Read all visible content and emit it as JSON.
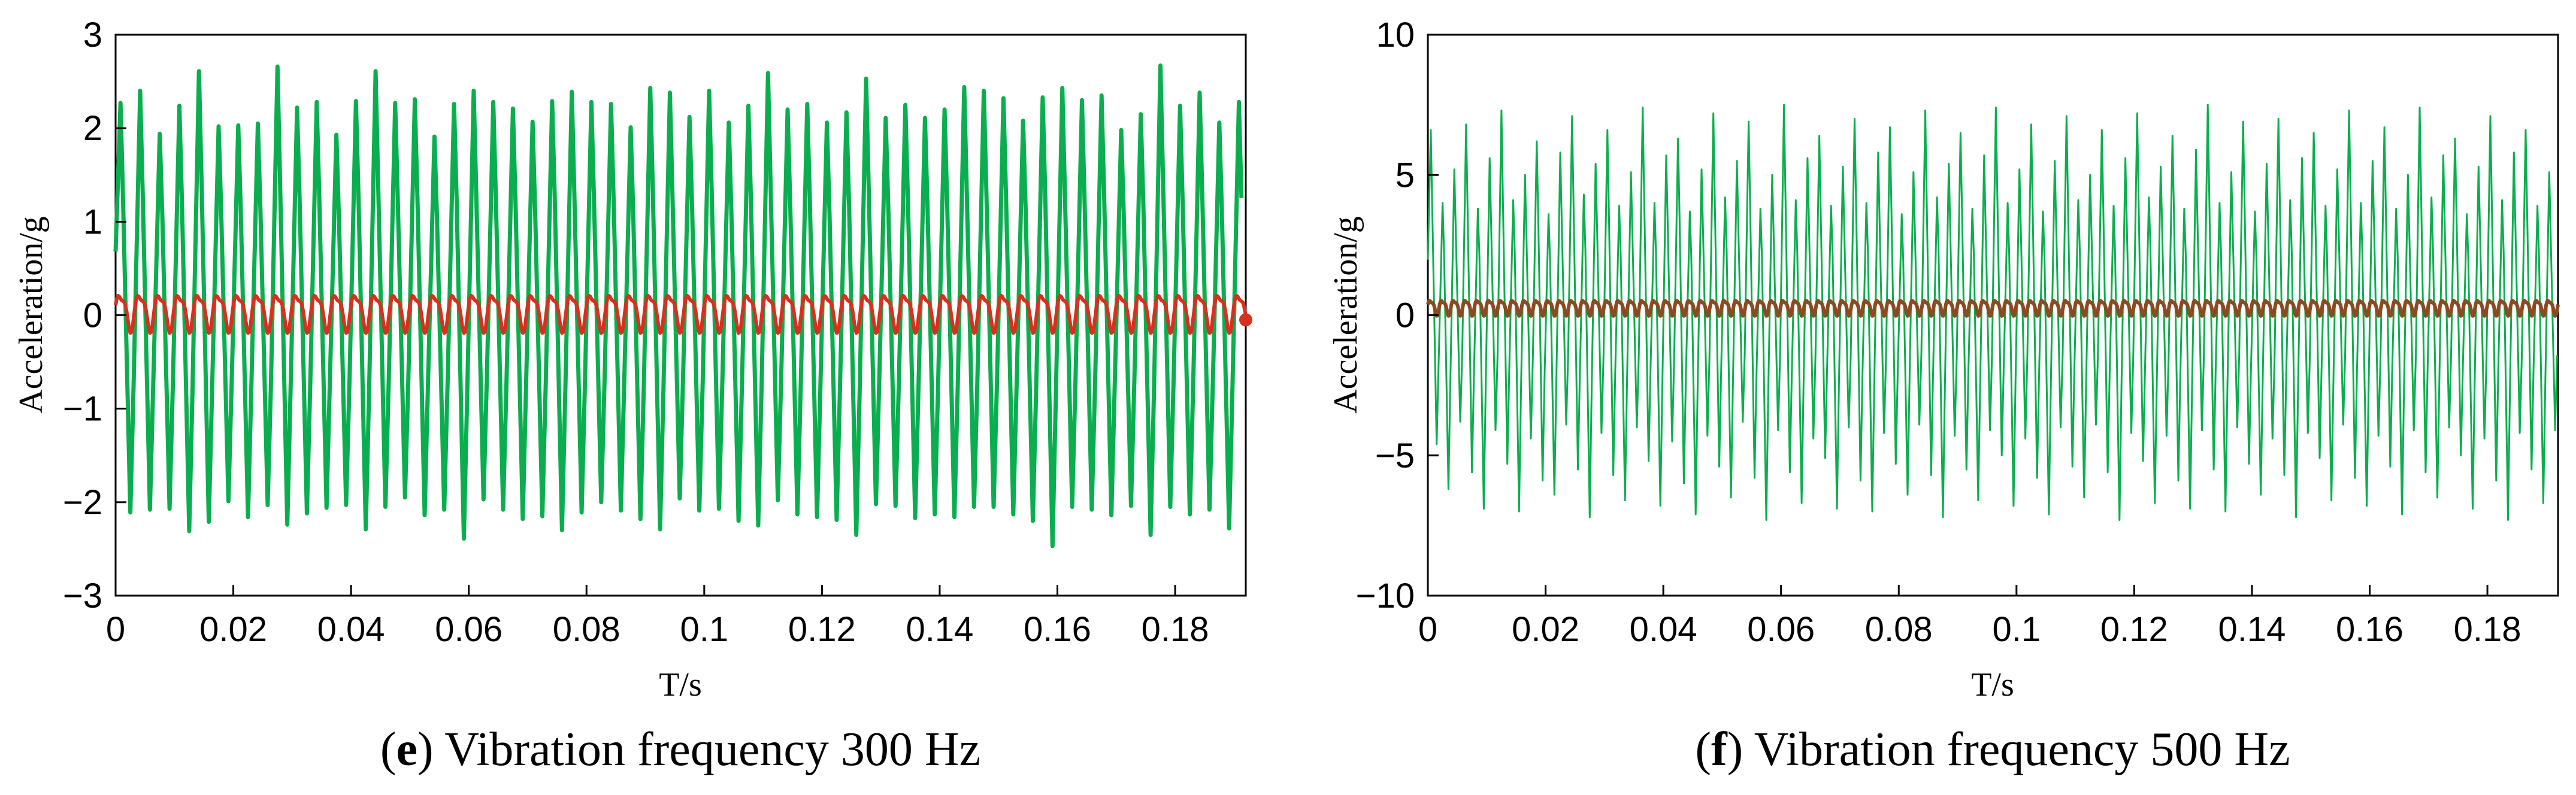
{
  "chart_data": [
    {
      "type": "line",
      "panel_letter": "e",
      "caption_text": " Vibration frequency 300 Hz",
      "xlabel": "T/s",
      "ylabel": "Acceleration/g",
      "xlim": [
        0,
        0.192
      ],
      "ylim": [
        -3,
        3
      ],
      "xticks": [
        0,
        0.02,
        0.04,
        0.06,
        0.08,
        0.1,
        0.12,
        0.14,
        0.16,
        0.18
      ],
      "xtick_labels": [
        "0",
        "0.02",
        "0.04",
        "0.06",
        "0.08",
        "0.1",
        "0.12",
        "0.14",
        "0.16",
        "0.18"
      ],
      "yticks": [
        -3,
        -2,
        -1,
        0,
        1,
        2,
        3
      ],
      "ytick_labels": [
        "−3",
        "−2",
        "−1",
        "0",
        "1",
        "2",
        "3"
      ],
      "grid": false,
      "series": [
        {
          "name": "green",
          "color": "#0aae4f",
          "cycles_per_second": 300,
          "peak_values": [
            2.27,
            2.4,
            1.94,
            2.24,
            2.61,
            2.02,
            2.03,
            2.05,
            2.66,
            2.22,
            2.28,
            1.93,
            2.29,
            2.61,
            2.27,
            2.31,
            1.91,
            2.26,
            2.4,
            2.28,
            2.21,
            2.07,
            2.29,
            2.39,
            2.28,
            2.26,
            2.01,
            2.43,
            2.38,
            2.12,
            2.4,
            2.06,
            2.24,
            2.59,
            2.2,
            2.26,
            2.06,
            2.17,
            2.53,
            2.11,
            2.25,
            2.11,
            2.2,
            2.44,
            2.4,
            2.32,
            2.08,
            2.33,
            2.43,
            2.3,
            2.35,
            1.98,
            2.15,
            2.67,
            2.24,
            2.38,
            2.06,
            2.28
          ],
          "trough_values": [
            -2.11,
            -2.08,
            -2.07,
            -2.31,
            -2.21,
            -1.99,
            -2.16,
            -2.03,
            -2.24,
            -2.12,
            -2.06,
            -2.03,
            -2.29,
            -2.05,
            -1.95,
            -2.14,
            -2.08,
            -2.39,
            -1.97,
            -2.08,
            -2.18,
            -2.15,
            -2.3,
            -2.11,
            -2.0,
            -2.09,
            -2.18,
            -2.29,
            -1.96,
            -2.09,
            -2.07,
            -2.2,
            -2.25,
            -1.98,
            -2.13,
            -2.16,
            -2.19,
            -2.35,
            -2.02,
            -2.04,
            -2.17,
            -2.13,
            -2.16,
            -2.05,
            -2.05,
            -2.13,
            -2.2,
            -2.47,
            -2.05,
            -2.08,
            -2.14,
            -2.04,
            -2.35,
            -2.05,
            -2.13,
            -2.08,
            -2.28,
            -2.38
          ]
        },
        {
          "name": "red",
          "color": "#d6301f",
          "cycles_per_second": 300,
          "amplitude": 0.22,
          "offset": 0.05
        }
      ]
    },
    {
      "type": "line",
      "panel_letter": "f",
      "caption_text": " Vibration frequency 500 Hz",
      "xlabel": "T/s",
      "ylabel": "Acceleration/g",
      "xlim": [
        0,
        0.192
      ],
      "ylim": [
        -10,
        10
      ],
      "xticks": [
        0,
        0.02,
        0.04,
        0.06,
        0.08,
        0.1,
        0.12,
        0.14,
        0.16,
        0.18
      ],
      "xtick_labels": [
        "0",
        "0.02",
        "0.04",
        "0.06",
        "0.08",
        "0.1",
        "0.12",
        "0.14",
        "0.16",
        "0.18"
      ],
      "yticks": [
        -10,
        -5,
        0,
        5,
        10
      ],
      "ytick_labels": [
        "−10",
        "−5",
        "0",
        "5",
        "10"
      ],
      "grid": false,
      "series": [
        {
          "name": "green",
          "color": "#0aae4f",
          "cycles_per_second": 500,
          "peak_values": [
            6.6,
            4.0,
            5.2,
            6.8,
            3.8,
            5.6,
            7.3,
            4.1,
            5.0,
            6.2,
            3.6,
            5.8,
            7.1,
            4.3,
            5.4,
            6.6,
            3.9,
            5.1,
            7.4,
            4.0,
            5.7,
            6.3,
            3.7,
            5.2,
            7.2,
            4.2,
            5.5,
            6.9,
            3.8,
            5.0,
            7.5,
            4.1,
            5.6,
            6.4,
            3.9,
            5.3,
            7.0,
            4.0,
            5.8,
            6.7,
            3.6,
            5.1,
            7.3,
            4.2,
            5.4,
            6.5,
            3.8,
            5.7,
            7.4,
            4.0,
            5.2,
            6.8,
            3.7,
            5.5,
            7.1,
            4.1,
            5.0,
            6.6,
            3.9,
            5.6,
            7.2,
            4.2,
            5.3,
            6.4,
            3.8,
            5.9,
            7.5,
            4.0,
            5.1,
            6.9,
            3.7,
            5.4,
            7.0,
            4.1,
            5.6,
            6.5,
            3.9,
            5.2,
            7.3,
            4.0,
            5.5,
            6.7,
            3.8,
            5.0,
            7.4,
            4.2,
            5.7,
            6.3,
            3.6,
            5.3,
            7.1,
            4.1,
            5.8,
            6.6,
            3.9,
            5.1
          ],
          "trough_values": [
            -4.6,
            -6.2,
            -3.8,
            -5.6,
            -6.9,
            -4.1,
            -5.3,
            -7.0,
            -4.4,
            -5.9,
            -6.4,
            -3.9,
            -5.5,
            -7.2,
            -4.2,
            -5.7,
            -6.6,
            -4.0,
            -5.2,
            -6.8,
            -4.5,
            -6.0,
            -7.1,
            -4.3,
            -5.4,
            -6.5,
            -3.8,
            -5.8,
            -7.3,
            -4.1,
            -5.6,
            -6.7,
            -4.4,
            -5.1,
            -6.9,
            -4.0,
            -5.9,
            -7.0,
            -4.2,
            -5.3,
            -6.4,
            -3.9,
            -5.7,
            -7.2,
            -4.3,
            -5.5,
            -6.6,
            -4.1,
            -5.0,
            -6.8,
            -4.4,
            -5.8,
            -7.1,
            -4.0,
            -5.4,
            -6.5,
            -3.9,
            -5.6,
            -7.3,
            -4.2,
            -5.2,
            -6.7,
            -4.3,
            -5.9,
            -6.9,
            -4.1,
            -5.5,
            -7.0,
            -4.0,
            -5.3,
            -6.4,
            -4.4,
            -5.7,
            -7.2,
            -4.2,
            -5.1,
            -6.6,
            -3.9,
            -5.8,
            -6.8,
            -4.3,
            -5.4,
            -7.1,
            -4.1,
            -5.6,
            -6.5,
            -4.0,
            -5.0,
            -6.9,
            -4.4,
            -5.9,
            -7.3,
            -4.2,
            -5.5,
            -6.7,
            -4.1
          ]
        },
        {
          "name": "brown",
          "color": "#8a4a22",
          "cycles_per_second": 500,
          "amplitude": 0.3,
          "offset": 0.3
        }
      ]
    }
  ]
}
